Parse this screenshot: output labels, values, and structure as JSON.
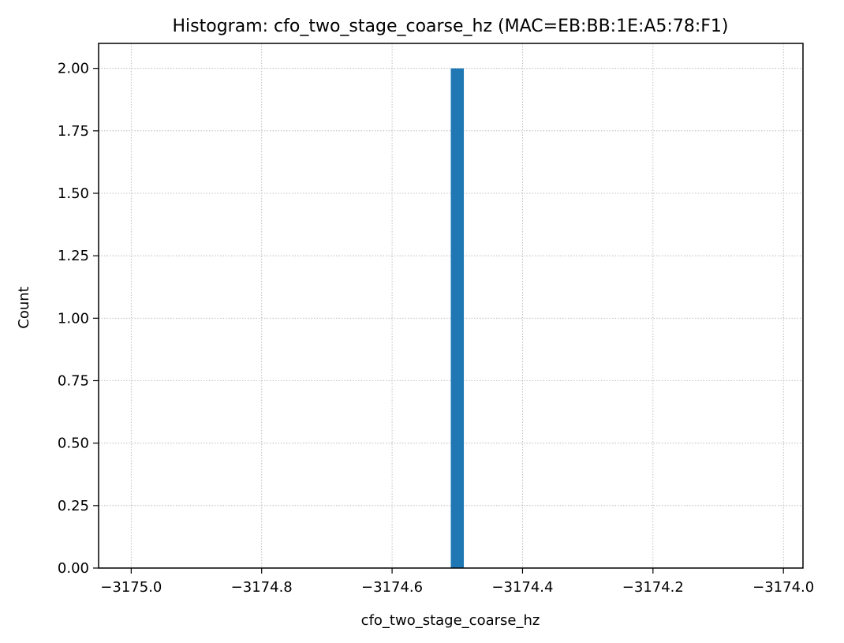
{
  "chart_data": {
    "type": "bar",
    "title": "Histogram: cfo_two_stage_coarse_hz (MAC=EB:BB:1E:A5:78:F1)",
    "xlabel": "cfo_two_stage_coarse_hz",
    "ylabel": "Count",
    "xlim": [
      -3175.05,
      -3173.97
    ],
    "ylim": [
      0,
      2.1
    ],
    "x_ticks": [
      -3175.0,
      -3174.8,
      -3174.6,
      -3174.4,
      -3174.2,
      -3174.0
    ],
    "x_tick_labels": [
      "−3175.0",
      "−3174.8",
      "−3174.6",
      "−3174.4",
      "−3174.2",
      "−3174.0"
    ],
    "y_ticks": [
      0,
      0.25,
      0.5,
      0.75,
      1.0,
      1.25,
      1.5,
      1.75,
      2.0
    ],
    "y_tick_labels": [
      "0.00",
      "0.25",
      "0.50",
      "0.75",
      "1.00",
      "1.25",
      "1.50",
      "1.75",
      "2.00"
    ],
    "grid": true,
    "bins": [
      {
        "x_start": -3174.51,
        "x_end": -3174.49,
        "count": 2
      }
    ],
    "color": "#1f77b4"
  }
}
